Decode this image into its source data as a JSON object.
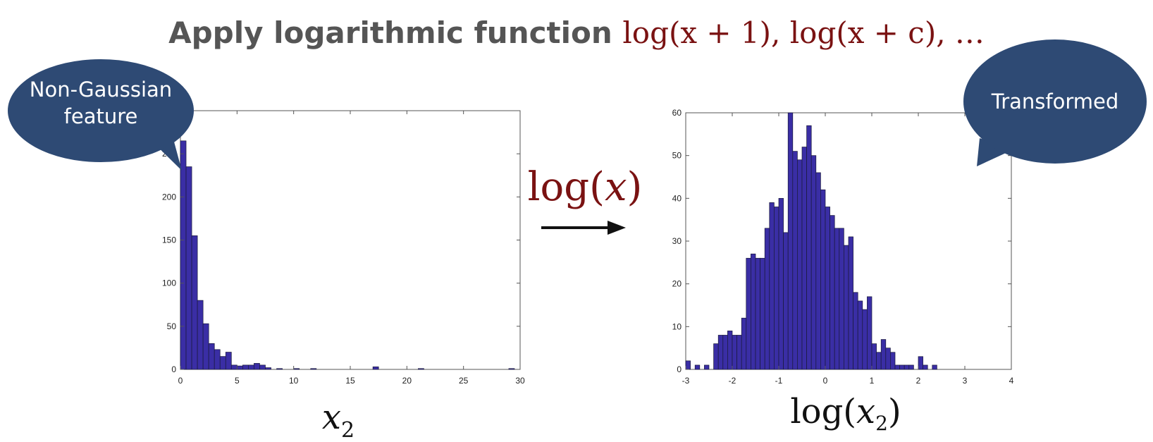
{
  "header": {
    "title_text": "Apply logarithmic function ",
    "title_formula": "log(x + 1), log(x + c), …"
  },
  "callouts": {
    "left": [
      "Non-Gaussian",
      "feature"
    ],
    "right": "Transformed"
  },
  "arrow_label": {
    "fn": "log(",
    "var": "x",
    "close": ")"
  },
  "colors": {
    "bar": "#3a2ea5",
    "bubble": "#2e4a74",
    "formula": "#7a1212"
  },
  "chart_data": [
    {
      "type": "bar",
      "xlabel": {
        "symbol": "x",
        "subscript": "2"
      },
      "xlim": [
        0,
        30
      ],
      "ylim": [
        0,
        300
      ],
      "xticks": [
        0,
        5,
        10,
        15,
        20,
        25,
        30
      ],
      "yticks": [
        0,
        50,
        100,
        150,
        200,
        250
      ],
      "bin_start": 0,
      "bin_width": 0.5,
      "values": [
        265,
        235,
        155,
        80,
        53,
        30,
        23,
        15,
        20,
        5,
        4,
        5,
        5,
        7,
        5,
        2,
        0,
        1,
        0,
        0,
        1,
        0,
        0,
        1,
        0,
        0,
        0,
        0,
        0,
        0,
        0,
        0,
        0,
        0,
        3,
        0,
        0,
        0,
        0,
        0,
        0,
        0,
        1,
        0,
        0,
        0,
        0,
        0,
        0,
        0,
        0,
        0,
        0,
        0,
        0,
        0,
        0,
        0,
        1,
        0
      ],
      "grid": false
    },
    {
      "type": "bar",
      "xlabel": {
        "fn": "log",
        "symbol": "x",
        "subscript": "2"
      },
      "xlim": [
        -3,
        4
      ],
      "ylim": [
        0,
        60
      ],
      "xticks": [
        -3,
        -2,
        -1,
        0,
        1,
        2,
        3,
        4
      ],
      "yticks": [
        0,
        10,
        20,
        30,
        40,
        50,
        60
      ],
      "bin_start": -3,
      "bin_width": 0.1,
      "values": [
        2,
        0,
        1,
        0,
        1,
        0,
        6,
        8,
        8,
        9,
        8,
        8,
        12,
        26,
        27,
        26,
        26,
        33,
        39,
        38,
        40,
        32,
        60,
        51,
        49,
        52,
        57,
        50,
        46,
        42,
        38,
        36,
        33,
        33,
        29,
        31,
        18,
        16,
        14,
        17,
        6,
        4,
        7,
        5,
        4,
        1,
        1,
        1,
        1,
        0,
        3,
        1,
        0,
        1,
        0,
        0,
        0,
        0,
        0,
        0,
        0,
        0,
        0,
        0,
        0,
        0,
        0,
        0,
        0,
        0
      ],
      "grid": false
    }
  ]
}
